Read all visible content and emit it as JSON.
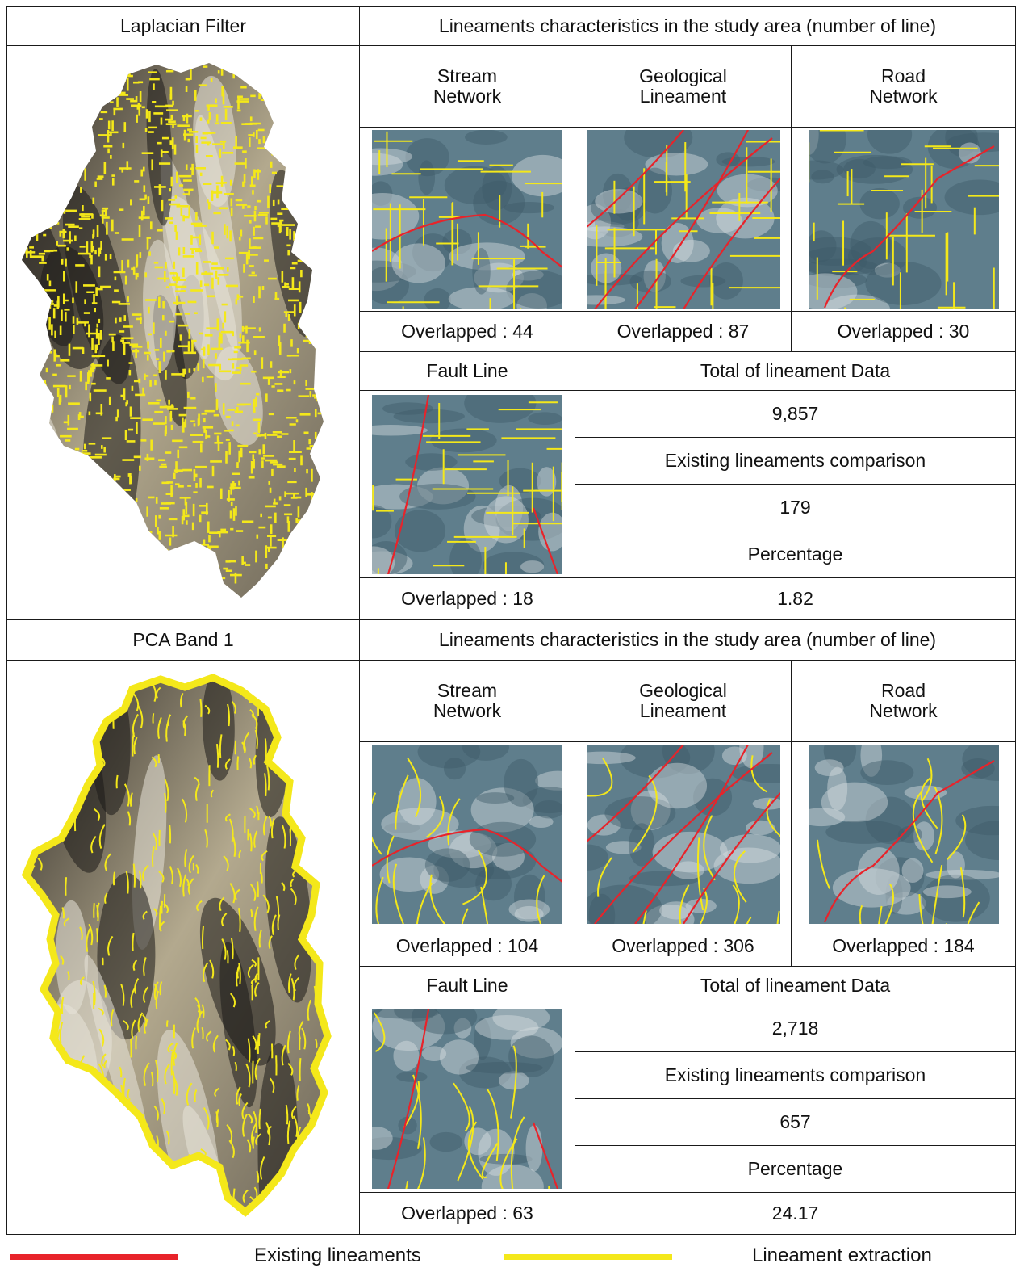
{
  "colors": {
    "existing": "#e8232a",
    "extraction": "#f4e81a",
    "border": "#1a1a1a"
  },
  "sections": [
    {
      "method": "Laplacian Filter",
      "header": "Lineaments characteristics in the study area (number of line)",
      "categories": [
        {
          "line1": "Stream",
          "line2": "Network",
          "overlap": "Overlapped : 44"
        },
        {
          "line1": "Geological",
          "line2": "Lineament",
          "overlap": "Overlapped : 87"
        },
        {
          "line1": "Road",
          "line2": "Network",
          "overlap": "Overlapped : 30"
        }
      ],
      "fault": {
        "label": "Fault Line",
        "overlap": "Overlapped : 18"
      },
      "summary": {
        "total_label": "Total of lineament Data",
        "total_value": "9,857",
        "comparison_label": "Existing lineaments comparison",
        "comparison_value": "179",
        "percentage_label": "Percentage",
        "percentage_value": "1.82"
      }
    },
    {
      "method": "PCA Band 1",
      "header": "Lineaments characteristics in the study area (number of line)",
      "categories": [
        {
          "line1": "Stream",
          "line2": "Network",
          "overlap": "Overlapped : 104"
        },
        {
          "line1": "Geological",
          "line2": "Lineament",
          "overlap": "Overlapped : 306"
        },
        {
          "line1": "Road",
          "line2": "Network",
          "overlap": "Overlapped : 184"
        }
      ],
      "fault": {
        "label": "Fault Line",
        "overlap": "Overlapped : 63"
      },
      "summary": {
        "total_label": "Total of lineament Data",
        "total_value": "2,718",
        "comparison_label": "Existing lineaments comparison",
        "comparison_value": "657",
        "percentage_label": "Percentage",
        "percentage_value": "24.17"
      }
    }
  ],
  "legend": {
    "existing": "Existing lineaments",
    "extraction": "Lineament extraction"
  }
}
